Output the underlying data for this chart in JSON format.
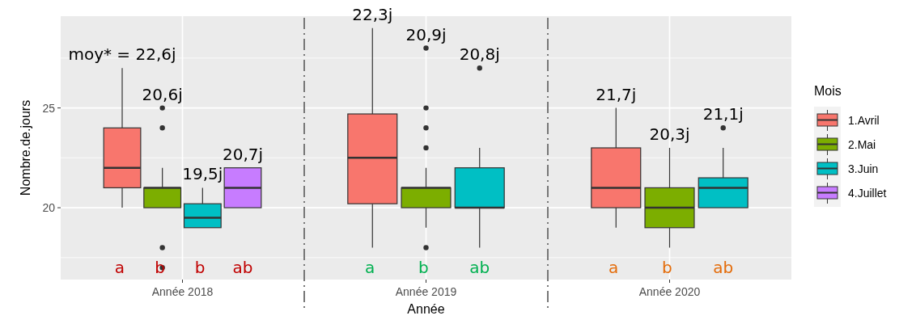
{
  "chart_data": {
    "type": "box",
    "xlabel": "Année",
    "ylabel": "Nombre.de.jours",
    "legend_title": "Mois",
    "legend": "right",
    "grid": true,
    "categories": [
      "Année 2018",
      "Année 2019",
      "Année 2020"
    ],
    "ylim": [
      16.4,
      29.6
    ],
    "yticks": [
      {
        "value": 17.5,
        "label": null
      },
      20,
      {
        "value": 22.5,
        "label": null
      },
      25,
      {
        "value": 27.5,
        "label": null
      }
    ],
    "series": [
      {
        "name": "1.Avril",
        "color": "#f8766d",
        "boxes": [
          {
            "low": 20,
            "q1": 21,
            "median": 22,
            "q3": 24,
            "high": 27
          },
          {
            "low": 18,
            "q1": 20.2,
            "median": 22.5,
            "q3": 24.7,
            "high": 29
          },
          {
            "low": 19,
            "q1": 20,
            "median": 21,
            "q3": 23,
            "high": 25
          }
        ]
      },
      {
        "name": "2.Mai",
        "color": "#7cae00",
        "boxes": [
          {
            "low": 20,
            "q1": 20,
            "median": 21,
            "q3": 21,
            "high": 22,
            "outliers": [
              25,
              24,
              18,
              17
            ]
          },
          {
            "low": 19,
            "q1": 20,
            "median": 21,
            "q3": 21,
            "high": 22,
            "outliers": [
              28,
              25,
              24,
              23,
              18
            ]
          },
          {
            "low": 18,
            "q1": 19,
            "median": 20,
            "q3": 21,
            "high": 23
          }
        ]
      },
      {
        "name": "3.Juin",
        "color": "#00bfc4",
        "boxes": [
          {
            "low": 19,
            "q1": 19,
            "median": 19.5,
            "q3": 20.2,
            "high": 21
          },
          {
            "low": 18,
            "q1": 20,
            "median": 20,
            "q3": 22,
            "high": 23,
            "outliers": [
              27
            ]
          },
          {
            "low": 20,
            "q1": 20,
            "median": 21,
            "q3": 21.5,
            "high": 23,
            "outliers": [
              24
            ]
          }
        ]
      },
      {
        "name": "4.Juillet",
        "color": "#c77cff",
        "boxes": [
          {
            "low": 20,
            "q1": 20,
            "median": 21,
            "q3": 22,
            "high": 22
          },
          null,
          null
        ]
      }
    ],
    "annotations": [
      "moy* = 22,6j",
      "20,6j",
      "19,5j",
      "20,7j",
      "a b b ab",
      "22,3j",
      "20,9j",
      "20,8j",
      "a b ab",
      "21,7j",
      "20,3j",
      "21,1j",
      "a b ab"
    ]
  }
}
